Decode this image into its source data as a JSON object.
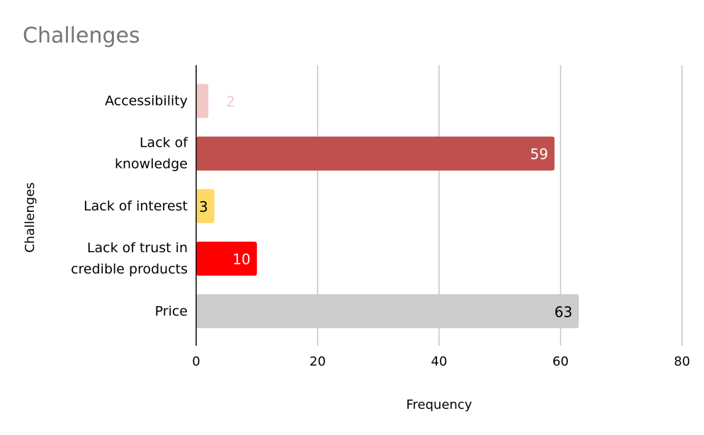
{
  "chart_data": {
    "type": "bar",
    "orientation": "horizontal",
    "title": "Challenges",
    "xlabel": "Frequency",
    "ylabel": "Challenges",
    "xlim": [
      0,
      80
    ],
    "xticks": [
      0,
      20,
      40,
      60,
      80
    ],
    "grid": "vertical",
    "legend": "none",
    "categories": [
      [
        "Accessibility"
      ],
      [
        "Lack of",
        "knowledge"
      ],
      [
        "Lack of interest"
      ],
      [
        "Lack of trust in",
        "credible products"
      ],
      [
        "Price"
      ]
    ],
    "values": [
      2,
      59,
      3,
      10,
      63
    ],
    "colors": [
      "#f4c7c7",
      "#c0504d",
      "#ffd966",
      "#ff0000",
      "#cccccc"
    ],
    "label_colors": [
      "#f4c7c7",
      "#ffffff",
      "#000000",
      "#ffffff",
      "#000000"
    ],
    "label_position": [
      "outside",
      "inside",
      "inside",
      "inside",
      "inside"
    ]
  }
}
